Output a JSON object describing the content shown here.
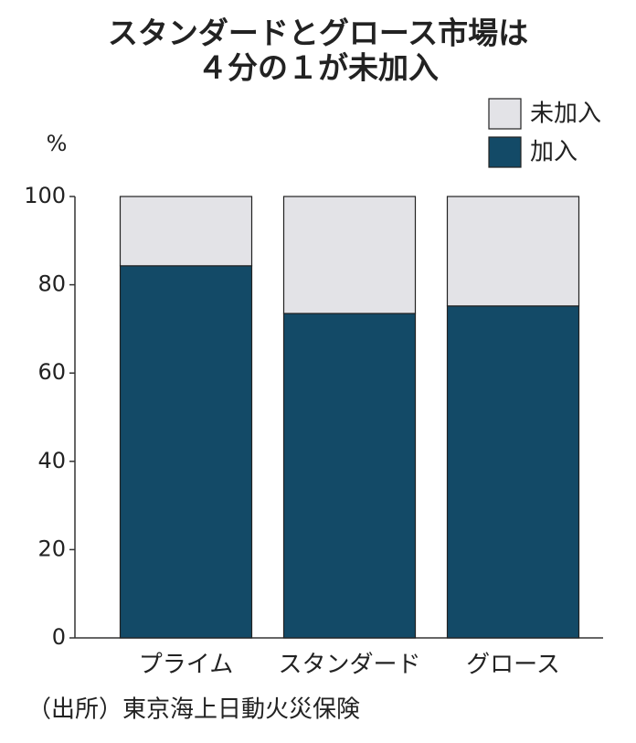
{
  "chart_data": {
    "type": "stacked_bar",
    "title": [
      "スタンダードとグロース市場は",
      "４分の１が未加入"
    ],
    "y_label": "%",
    "categories": [
      "プライム",
      "スタンダード",
      "グロース"
    ],
    "series": [
      {
        "name": "加入",
        "color": "#134a67",
        "values": [
          84.3,
          73.5,
          75.2
        ]
      },
      {
        "name": "未加入",
        "color": "#e3e3e7",
        "values": [
          15.7,
          26.5,
          24.8
        ]
      }
    ],
    "ylim": [
      0,
      100
    ],
    "yticks": [
      0,
      20,
      40,
      60,
      80,
      100
    ],
    "source": "（出所）東京海上日動火災保険"
  }
}
